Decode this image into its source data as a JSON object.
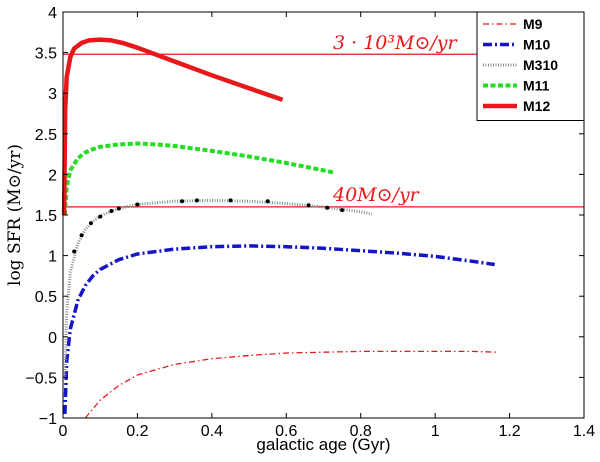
{
  "chart_data": {
    "type": "line",
    "title": "",
    "xlabel": "galactic age (Gyr)",
    "ylabel": "log SFR (M⊙/yr)",
    "xlim": [
      0,
      1.4
    ],
    "ylim": [
      -1,
      4
    ],
    "xticks": [
      "0",
      "0.2",
      "0.4",
      "0.6",
      "0.8",
      "1",
      "1.2",
      "1.4"
    ],
    "yticks": [
      "−1",
      "−0.5",
      "0",
      "0.5",
      "1",
      "1.5",
      "2",
      "2.5",
      "3",
      "3.5",
      "4"
    ],
    "grid": false,
    "legend_position": "top-right",
    "colors": {
      "M9": "#e8181a",
      "M10": "#1414c8",
      "M310": "#8c8c8c",
      "M11": "#22dd22",
      "M12": "#e8181a",
      "reference": "#e8181a",
      "M310_dots": "#000000"
    },
    "series": [
      {
        "name": "M9",
        "style": "dash-dot",
        "x": [
          0.06,
          0.1,
          0.15,
          0.2,
          0.3,
          0.4,
          0.5,
          0.6,
          0.7,
          0.8,
          0.9,
          1.0,
          1.1,
          1.17
        ],
        "y": [
          -1.0,
          -0.78,
          -0.6,
          -0.47,
          -0.34,
          -0.27,
          -0.23,
          -0.2,
          -0.19,
          -0.18,
          -0.18,
          -0.18,
          -0.18,
          -0.19
        ]
      },
      {
        "name": "M10",
        "style": "dash-dot-thick",
        "x": [
          0.005,
          0.01,
          0.02,
          0.04,
          0.06,
          0.08,
          0.1,
          0.15,
          0.2,
          0.3,
          0.4,
          0.5,
          0.6,
          0.7,
          0.8,
          0.9,
          1.0,
          1.1,
          1.16
        ],
        "y": [
          -0.95,
          -0.3,
          0.1,
          0.45,
          0.63,
          0.75,
          0.83,
          0.95,
          1.02,
          1.08,
          1.11,
          1.12,
          1.11,
          1.09,
          1.06,
          1.03,
          0.99,
          0.93,
          0.89
        ]
      },
      {
        "name": "M310",
        "style": "dotted",
        "x": [
          0.005,
          0.01,
          0.02,
          0.04,
          0.06,
          0.08,
          0.1,
          0.15,
          0.2,
          0.3,
          0.4,
          0.5,
          0.6,
          0.7,
          0.8,
          0.83
        ],
        "y": [
          -0.5,
          0.3,
          0.8,
          1.15,
          1.32,
          1.42,
          1.49,
          1.58,
          1.63,
          1.67,
          1.68,
          1.67,
          1.64,
          1.6,
          1.54,
          1.51
        ]
      },
      {
        "name": "M11",
        "style": "dashed",
        "x": [
          0.005,
          0.01,
          0.02,
          0.04,
          0.06,
          0.08,
          0.1,
          0.15,
          0.2,
          0.25,
          0.3,
          0.4,
          0.5,
          0.6,
          0.7,
          0.73
        ],
        "y": [
          1.5,
          1.85,
          2.05,
          2.2,
          2.27,
          2.31,
          2.34,
          2.37,
          2.38,
          2.37,
          2.35,
          2.29,
          2.22,
          2.14,
          2.05,
          2.02
        ]
      },
      {
        "name": "M12",
        "style": "solid-thick",
        "x": [
          0.003,
          0.006,
          0.01,
          0.02,
          0.03,
          0.05,
          0.07,
          0.1,
          0.13,
          0.16,
          0.2,
          0.3,
          0.4,
          0.5,
          0.59
        ],
        "y": [
          1.5,
          2.8,
          3.2,
          3.45,
          3.55,
          3.62,
          3.65,
          3.66,
          3.65,
          3.62,
          3.56,
          3.39,
          3.22,
          3.06,
          2.92
        ]
      }
    ],
    "m310_markers": {
      "x": [
        0.03,
        0.05,
        0.075,
        0.1,
        0.13,
        0.15,
        0.2,
        0.32,
        0.36,
        0.45,
        0.55,
        0.66,
        0.71,
        0.75
      ],
      "y": [
        1.05,
        1.25,
        1.4,
        1.48,
        1.55,
        1.58,
        1.63,
        1.67,
        1.68,
        1.68,
        1.67,
        1.62,
        1.59,
        1.56
      ]
    },
    "reference_lines": [
      {
        "y": 3.48,
        "label": "3 · 10³M⊙/yr"
      },
      {
        "y": 1.6,
        "label": "40M⊙/yr"
      }
    ]
  }
}
